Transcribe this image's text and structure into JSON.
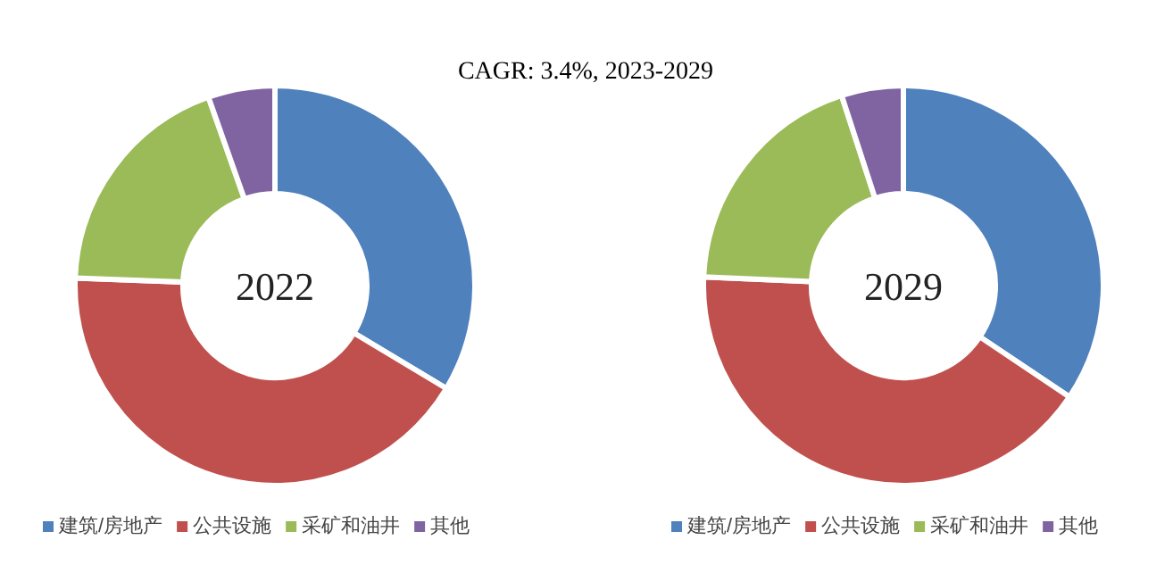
{
  "chart_data": [
    {
      "type": "donut",
      "title": "2022",
      "annotations": [
        "CAGR:   3.4%, 2023-2029"
      ],
      "categories": [
        "建筑/房地产",
        "公共设施",
        "采矿和油井",
        "其他"
      ],
      "values": [
        33.6,
        42,
        19,
        5.4
      ],
      "colors": [
        "#4f81bd",
        "#c0504d",
        "#9bbb59",
        "#8064a2"
      ],
      "legend": "bottom"
    },
    {
      "type": "donut",
      "title": "2029",
      "categories": [
        "建筑/房地产",
        "公共设施",
        "采矿和油井",
        "其他"
      ],
      "values": [
        34.4,
        41.3,
        19.3,
        5
      ],
      "colors": [
        "#4f81bd",
        "#c0504d",
        "#9bbb59",
        "#8064a2"
      ],
      "legend": "bottom"
    }
  ]
}
